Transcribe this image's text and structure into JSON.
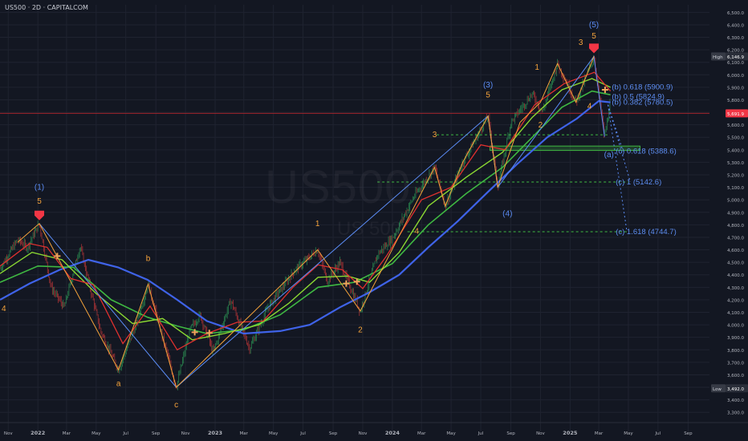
{
  "header": {
    "title": "US500 · 2D · CAPITALCOM"
  },
  "watermark": {
    "symbol": "US500",
    "sub": "US 500"
  },
  "colors": {
    "background": "#131722",
    "grid": "#1f2330",
    "wave_orange": "#f5a33b",
    "wave_blue": "#5b8cf5",
    "ma_red": "#e0312f",
    "ma_green": "#8bd832",
    "ma_green_dark": "#3fb842",
    "ma_blue": "#3f63e8",
    "candle_green": "#2fa35a",
    "candle_red": "#d23a3a",
    "marker_red": "#f23645",
    "marker_orange": "#f0a35b",
    "projection_label": "#5d8df0",
    "support_line": "#3fb842",
    "price_line": "#c2272d"
  },
  "chart_data": {
    "type": "line",
    "symbol": "US500",
    "timeframe": "2D",
    "broker": "CAPITALCOM",
    "ylim": [
      3250,
      6560
    ],
    "y_ticks": [
      3300,
      3400,
      3500,
      3600,
      3700,
      3800,
      3900,
      4000,
      4100,
      4200,
      4300,
      4400,
      4500,
      4600,
      4700,
      4800,
      4900,
      5000,
      5100,
      5200,
      5300,
      5400,
      5500,
      5600,
      5700,
      5800,
      5900,
      6000,
      6100,
      6200,
      6300,
      6400,
      6500
    ],
    "y_tick_labels": [
      "3,300.0",
      "3,400.0",
      "3,500.0",
      "3,600.0",
      "3,700.0",
      "3,800.0",
      "3,900.0",
      "4,000.0",
      "4,100.0",
      "4,200.0",
      "4,300.0",
      "4,400.0",
      "4,500.0",
      "4,600.0",
      "4,700.0",
      "4,800.0",
      "4,900.0",
      "5,000.0",
      "5,100.0",
      "5,200.0",
      "5,300.0",
      "5,400.0",
      "5,500.0",
      "5,600.0",
      "5,700.0",
      "5,800.0",
      "5,900.0",
      "6,000.0",
      "6,100.0",
      "6,200.0",
      "6,300.0",
      "6,400.0",
      "6,500.0"
    ],
    "xlim": [
      "2021-10-15",
      "2025-10-15"
    ],
    "x_ticks": [
      {
        "date": "2021-11-01",
        "label": "Nov",
        "bold": false
      },
      {
        "date": "2022-01-01",
        "label": "2022",
        "bold": true
      },
      {
        "date": "2022-03-01",
        "label": "Mar",
        "bold": false
      },
      {
        "date": "2022-05-01",
        "label": "May",
        "bold": false
      },
      {
        "date": "2022-07-01",
        "label": "Jul",
        "bold": false
      },
      {
        "date": "2022-09-01",
        "label": "Sep",
        "bold": false
      },
      {
        "date": "2022-11-01",
        "label": "Nov",
        "bold": false
      },
      {
        "date": "2023-01-01",
        "label": "2023",
        "bold": true
      },
      {
        "date": "2023-03-01",
        "label": "Mar",
        "bold": false
      },
      {
        "date": "2023-05-01",
        "label": "May",
        "bold": false
      },
      {
        "date": "2023-07-01",
        "label": "Jul",
        "bold": false
      },
      {
        "date": "2023-09-01",
        "label": "Sep",
        "bold": false
      },
      {
        "date": "2023-11-01",
        "label": "Nov",
        "bold": false
      },
      {
        "date": "2024-01-01",
        "label": "2024",
        "bold": true
      },
      {
        "date": "2024-03-01",
        "label": "Mar",
        "bold": false
      },
      {
        "date": "2024-05-01",
        "label": "May",
        "bold": false
      },
      {
        "date": "2024-07-01",
        "label": "Jul",
        "bold": false
      },
      {
        "date": "2024-09-01",
        "label": "Sep",
        "bold": false
      },
      {
        "date": "2024-11-01",
        "label": "Nov",
        "bold": false
      },
      {
        "date": "2025-01-01",
        "label": "2025",
        "bold": true
      },
      {
        "date": "2025-03-01",
        "label": "Mar",
        "bold": false
      },
      {
        "date": "2025-05-01",
        "label": "May",
        "bold": false
      },
      {
        "date": "2025-07-01",
        "label": "Jul",
        "bold": false
      },
      {
        "date": "2025-09-01",
        "label": "Sep",
        "bold": false
      }
    ],
    "price_path": [
      {
        "x": "2021-10-15",
        "y": 4450
      },
      {
        "x": "2021-11-20",
        "y": 4680
      },
      {
        "x": "2021-12-10",
        "y": 4620
      },
      {
        "x": "2022-01-04",
        "y": 4810
      },
      {
        "x": "2022-01-28",
        "y": 4300
      },
      {
        "x": "2022-02-24",
        "y": 4140
      },
      {
        "x": "2022-03-29",
        "y": 4630
      },
      {
        "x": "2022-05-10",
        "y": 3950
      },
      {
        "x": "2022-06-16",
        "y": 3640
      },
      {
        "x": "2022-07-20",
        "y": 3980
      },
      {
        "x": "2022-08-16",
        "y": 4325
      },
      {
        "x": "2022-09-15",
        "y": 3900
      },
      {
        "x": "2022-10-13",
        "y": 3500
      },
      {
        "x": "2022-11-10",
        "y": 3960
      },
      {
        "x": "2022-12-01",
        "y": 4080
      },
      {
        "x": "2022-12-28",
        "y": 3780
      },
      {
        "x": "2023-02-02",
        "y": 4195
      },
      {
        "x": "2023-03-13",
        "y": 3810
      },
      {
        "x": "2023-04-20",
        "y": 4140
      },
      {
        "x": "2023-06-15",
        "y": 4440
      },
      {
        "x": "2023-07-31",
        "y": 4600
      },
      {
        "x": "2023-08-20",
        "y": 4350
      },
      {
        "x": "2023-09-15",
        "y": 4500
      },
      {
        "x": "2023-10-27",
        "y": 4110
      },
      {
        "x": "2023-12-01",
        "y": 4560
      },
      {
        "x": "2024-01-02",
        "y": 4700
      },
      {
        "x": "2024-02-15",
        "y": 5030
      },
      {
        "x": "2024-03-28",
        "y": 5260
      },
      {
        "x": "2024-04-19",
        "y": 4950
      },
      {
        "x": "2024-05-25",
        "y": 5300
      },
      {
        "x": "2024-07-16",
        "y": 5670
      },
      {
        "x": "2024-08-05",
        "y": 5100
      },
      {
        "x": "2024-09-01",
        "y": 5620
      },
      {
        "x": "2024-10-15",
        "y": 5850
      },
      {
        "x": "2024-11-05",
        "y": 5700
      },
      {
        "x": "2024-12-06",
        "y": 6090
      },
      {
        "x": "2025-01-13",
        "y": 5780
      },
      {
        "x": "2025-02-19",
        "y": 6146.9
      },
      {
        "x": "2025-03-13",
        "y": 5505
      },
      {
        "x": "2025-03-25",
        "y": 5780
      }
    ],
    "ma_red": [
      {
        "x": "2021-10-15",
        "y": 4470
      },
      {
        "x": "2021-12-15",
        "y": 4650
      },
      {
        "x": "2022-01-20",
        "y": 4620
      },
      {
        "x": "2022-03-10",
        "y": 4370
      },
      {
        "x": "2022-04-25",
        "y": 4320
      },
      {
        "x": "2022-06-25",
        "y": 3850
      },
      {
        "x": "2022-08-20",
        "y": 4150
      },
      {
        "x": "2022-10-15",
        "y": 3800
      },
      {
        "x": "2022-12-15",
        "y": 3930
      },
      {
        "x": "2023-02-15",
        "y": 4020
      },
      {
        "x": "2023-04-10",
        "y": 4030
      },
      {
        "x": "2023-06-10",
        "y": 4300
      },
      {
        "x": "2023-08-01",
        "y": 4480
      },
      {
        "x": "2023-09-20",
        "y": 4440
      },
      {
        "x": "2023-11-01",
        "y": 4290
      },
      {
        "x": "2023-12-20",
        "y": 4550
      },
      {
        "x": "2024-03-01",
        "y": 5000
      },
      {
        "x": "2024-05-01",
        "y": 5100
      },
      {
        "x": "2024-07-01",
        "y": 5440
      },
      {
        "x": "2024-08-20",
        "y": 5400
      },
      {
        "x": "2024-10-20",
        "y": 5760
      },
      {
        "x": "2024-12-20",
        "y": 5930
      },
      {
        "x": "2025-02-20",
        "y": 6020
      },
      {
        "x": "2025-03-25",
        "y": 5870
      }
    ],
    "ma_green": [
      {
        "x": "2021-10-15",
        "y": 4410
      },
      {
        "x": "2021-12-20",
        "y": 4580
      },
      {
        "x": "2022-02-20",
        "y": 4520
      },
      {
        "x": "2022-05-01",
        "y": 4250
      },
      {
        "x": "2022-07-15",
        "y": 4010
      },
      {
        "x": "2022-09-15",
        "y": 4050
      },
      {
        "x": "2022-11-15",
        "y": 3880
      },
      {
        "x": "2023-01-20",
        "y": 3930
      },
      {
        "x": "2023-04-01",
        "y": 4000
      },
      {
        "x": "2023-06-01",
        "y": 4170
      },
      {
        "x": "2023-08-01",
        "y": 4380
      },
      {
        "x": "2023-10-01",
        "y": 4390
      },
      {
        "x": "2023-11-15",
        "y": 4340
      },
      {
        "x": "2024-01-15",
        "y": 4580
      },
      {
        "x": "2024-03-15",
        "y": 4950
      },
      {
        "x": "2024-06-01",
        "y": 5180
      },
      {
        "x": "2024-08-15",
        "y": 5380
      },
      {
        "x": "2024-10-15",
        "y": 5660
      },
      {
        "x": "2024-12-15",
        "y": 5880
      },
      {
        "x": "2025-02-15",
        "y": 5970
      },
      {
        "x": "2025-03-25",
        "y": 5900
      }
    ],
    "ma_green_dark": [
      {
        "x": "2021-10-15",
        "y": 4340
      },
      {
        "x": "2022-01-01",
        "y": 4470
      },
      {
        "x": "2022-03-15",
        "y": 4460
      },
      {
        "x": "2022-06-01",
        "y": 4200
      },
      {
        "x": "2022-08-15",
        "y": 4060
      },
      {
        "x": "2022-10-15",
        "y": 3990
      },
      {
        "x": "2022-12-15",
        "y": 3930
      },
      {
        "x": "2023-03-01",
        "y": 3960
      },
      {
        "x": "2023-05-15",
        "y": 4080
      },
      {
        "x": "2023-08-01",
        "y": 4300
      },
      {
        "x": "2023-10-15",
        "y": 4340
      },
      {
        "x": "2024-01-01",
        "y": 4490
      },
      {
        "x": "2024-03-15",
        "y": 4800
      },
      {
        "x": "2024-06-01",
        "y": 5050
      },
      {
        "x": "2024-08-15",
        "y": 5260
      },
      {
        "x": "2024-10-15",
        "y": 5500
      },
      {
        "x": "2024-12-15",
        "y": 5740
      },
      {
        "x": "2025-02-15",
        "y": 5870
      },
      {
        "x": "2025-03-25",
        "y": 5840
      }
    ],
    "ma_blue": [
      {
        "x": "2021-10-15",
        "y": 4200
      },
      {
        "x": "2021-12-15",
        "y": 4330
      },
      {
        "x": "2022-02-15",
        "y": 4440
      },
      {
        "x": "2022-04-15",
        "y": 4520
      },
      {
        "x": "2022-06-15",
        "y": 4460
      },
      {
        "x": "2022-08-15",
        "y": 4360
      },
      {
        "x": "2022-10-15",
        "y": 4200
      },
      {
        "x": "2022-12-15",
        "y": 4030
      },
      {
        "x": "2023-03-01",
        "y": 3930
      },
      {
        "x": "2023-05-15",
        "y": 3950
      },
      {
        "x": "2023-07-15",
        "y": 4000
      },
      {
        "x": "2023-09-15",
        "y": 4140
      },
      {
        "x": "2023-11-15",
        "y": 4260
      },
      {
        "x": "2024-01-15",
        "y": 4400
      },
      {
        "x": "2024-03-15",
        "y": 4620
      },
      {
        "x": "2024-05-15",
        "y": 4830
      },
      {
        "x": "2024-07-15",
        "y": 5060
      },
      {
        "x": "2024-09-15",
        "y": 5290
      },
      {
        "x": "2024-11-15",
        "y": 5500
      },
      {
        "x": "2025-01-15",
        "y": 5650
      },
      {
        "x": "2025-03-01",
        "y": 5790
      },
      {
        "x": "2025-03-25",
        "y": 5780
      }
    ],
    "minor_waves": [
      {
        "x": "2021-11-20",
        "y": 4660
      },
      {
        "x": "2022-01-04",
        "y": 4810
      },
      {
        "x": "2022-06-16",
        "y": 3640
      },
      {
        "x": "2022-08-16",
        "y": 4325
      },
      {
        "x": "2022-10-13",
        "y": 3500
      },
      {
        "x": "2023-07-31",
        "y": 4600
      },
      {
        "x": "2023-10-27",
        "y": 4110
      },
      {
        "x": "2024-03-28",
        "y": 5260
      },
      {
        "x": "2024-04-19",
        "y": 4950
      },
      {
        "x": "2024-05-25",
        "y": 5300
      },
      {
        "x": "2024-07-16",
        "y": 5670
      },
      {
        "x": "2024-08-05",
        "y": 5100
      },
      {
        "x": "2024-09-20",
        "y": 5620
      },
      {
        "x": "2024-11-01",
        "y": 5780
      },
      {
        "x": "2024-12-06",
        "y": 6090
      },
      {
        "x": "2025-01-13",
        "y": 5780
      },
      {
        "x": "2025-02-19",
        "y": 6146.9
      }
    ],
    "major_waves": [
      {
        "x": "2022-01-04",
        "y": 4810
      },
      {
        "x": "2022-10-13",
        "y": 3500
      },
      {
        "x": "2024-07-16",
        "y": 5670
      },
      {
        "x": "2024-08-05",
        "y": 5100
      },
      {
        "x": "2025-02-19",
        "y": 6146.9
      },
      {
        "x": "2025-03-13",
        "y": 5505
      }
    ],
    "projections": [
      {
        "from": {
          "x": "2025-03-20",
          "y": 5760
        },
        "to": {
          "x": "2025-04-20",
          "y": 5388.6
        }
      },
      {
        "from": {
          "x": "2025-03-20",
          "y": 5760
        },
        "to": {
          "x": "2025-05-05",
          "y": 5142.6
        }
      },
      {
        "from": {
          "x": "2025-03-20",
          "y": 5760
        },
        "to": {
          "x": "2025-04-28",
          "y": 4744.7
        }
      }
    ],
    "support_zone": {
      "from": "2024-07-20",
      "to": "2025-05-25",
      "y_low": 5395,
      "y_high": 5430
    },
    "dashed_levels": [
      {
        "y": 5520,
        "from": "2024-04-01",
        "to": "2025-03-20"
      },
      {
        "y": 5142.6,
        "from": "2023-12-01",
        "to": "2025-05-01"
      },
      {
        "y": 4744.7,
        "from": "2024-02-01",
        "to": "2025-05-01"
      }
    ],
    "price_line": {
      "y": 5691.9
    },
    "wave_labels": [
      {
        "x": "2022-01-04",
        "y": 5080,
        "text": "(1)",
        "color": "blue"
      },
      {
        "x": "2022-01-04",
        "y": 4970,
        "text": "5",
        "color": "orange"
      },
      {
        "x": "2022-08-16",
        "y": 4510,
        "text": "b",
        "color": "orange"
      },
      {
        "x": "2022-06-16",
        "y": 3510,
        "text": "a",
        "color": "orange"
      },
      {
        "x": "2022-10-13",
        "y": 3340,
        "text": "c",
        "color": "orange"
      },
      {
        "x": "2023-07-31",
        "y": 4790,
        "text": "1",
        "color": "orange"
      },
      {
        "x": "2023-10-27",
        "y": 3940,
        "text": "2",
        "color": "orange"
      },
      {
        "x": "2024-03-28",
        "y": 5500,
        "text": "3",
        "color": "orange"
      },
      {
        "x": "2024-07-16",
        "y": 5900,
        "text": "(3)",
        "color": "blue"
      },
      {
        "x": "2024-07-16",
        "y": 5820,
        "text": "5",
        "color": "orange"
      },
      {
        "x": "2024-08-25",
        "y": 4870,
        "text": "(4)",
        "color": "blue"
      },
      {
        "x": "2024-11-01",
        "y": 5580,
        "text": "2",
        "color": "orange"
      },
      {
        "x": "2024-10-25",
        "y": 6040,
        "text": "1",
        "color": "orange"
      },
      {
        "x": "2025-01-23",
        "y": 6240,
        "text": "3",
        "color": "orange"
      },
      {
        "x": "2025-02-19",
        "y": 6380,
        "text": "(5)",
        "color": "blue"
      },
      {
        "x": "2025-02-19",
        "y": 6290,
        "text": "5",
        "color": "orange"
      },
      {
        "x": "2025-02-10",
        "y": 5730,
        "text": "4",
        "color": "orange"
      },
      {
        "x": "2024-02-20",
        "y": 4730,
        "text": "4",
        "color": "orange"
      },
      {
        "x": "2025-03-22",
        "y": 5340,
        "text": "(a)",
        "color": "blue"
      }
    ],
    "edge_labels": [
      {
        "y": 4110,
        "text": "4"
      }
    ],
    "fib_labels": [
      {
        "x": "2025-03-28",
        "y": 5900.9,
        "text": "(b) 0.618 (5900.9)"
      },
      {
        "x": "2025-03-28",
        "y": 5824.9,
        "text": "(b) 0.5 (5824.9)"
      },
      {
        "x": "2025-03-28",
        "y": 5780.5,
        "text": "(b) 0.382 (5780.5)"
      },
      {
        "x": "2025-04-05",
        "y": 5388.6,
        "text": "(c) 0.618 (5388.6)"
      },
      {
        "x": "2025-04-05",
        "y": 5142.6,
        "text": "(c) 1 (5142.6)"
      },
      {
        "x": "2025-04-05",
        "y": 4744.7,
        "text": "(c) 1.618 (4744.7)"
      }
    ],
    "markers": {
      "red_arrows": [
        {
          "x": "2022-01-04",
          "y": 4810
        },
        {
          "x": "2025-02-19",
          "y": 6146.9
        }
      ],
      "crosses": [
        {
          "x": "2022-02-10",
          "y": 4550
        },
        {
          "x": "2022-11-20",
          "y": 3940
        },
        {
          "x": "2022-12-20",
          "y": 3935
        },
        {
          "x": "2023-09-28",
          "y": 4330
        },
        {
          "x": "2023-10-20",
          "y": 4345
        },
        {
          "x": "2025-03-14",
          "y": 5880
        }
      ]
    },
    "price_badges": [
      {
        "y": 6146.9,
        "label": "High",
        "value": "6,146.9",
        "kind": "dark"
      },
      {
        "y": 5691.9,
        "label": "",
        "value": "5,691.9",
        "kind": "red"
      },
      {
        "y": 3492.0,
        "label": "Low",
        "value": "3,492.0",
        "kind": "dark"
      }
    ],
    "title": "US500 · 2D · CAPITALCOM"
  }
}
